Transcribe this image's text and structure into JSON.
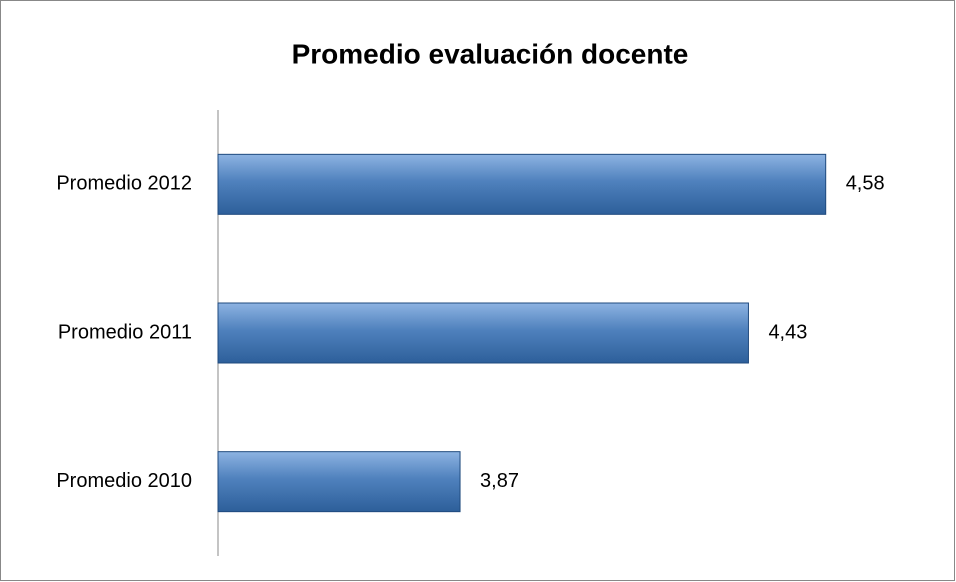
{
  "chart_data": {
    "type": "bar",
    "orientation": "horizontal",
    "title": "Promedio evaluación docente",
    "categories": [
      "Promedio 2012",
      "Promedio 2011",
      "Promedio 2010"
    ],
    "values": [
      4.58,
      4.43,
      3.87
    ],
    "value_labels": [
      "4,58",
      "4,43",
      "3,87"
    ],
    "color": "#4f81bd",
    "xlim": [
      3.4,
      4.8
    ]
  }
}
